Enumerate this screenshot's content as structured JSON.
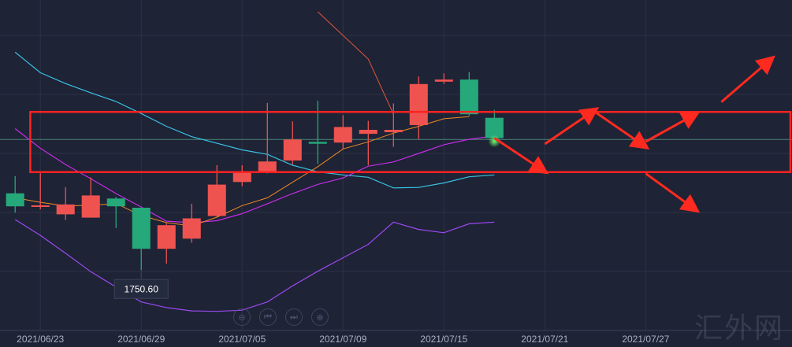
{
  "chart_data": {
    "type": "candlestick",
    "x": [
      "2021/06/22",
      "2021/06/23",
      "2021/06/24",
      "2021/06/25",
      "2021/06/28",
      "2021/06/29",
      "2021/06/30",
      "2021/07/01",
      "2021/07/02",
      "2021/07/05",
      "2021/07/06",
      "2021/07/07",
      "2021/07/08",
      "2021/07/09",
      "2021/07/12",
      "2021/07/13",
      "2021/07/14",
      "2021/07/15",
      "2021/07/16",
      "2021/07/19"
    ],
    "x_tick_labels": [
      "2021/06/23",
      "2021/06/29",
      "2021/07/05",
      "2021/07/09",
      "2021/07/15",
      "2021/07/21",
      "2021/07/27"
    ],
    "candles": [
      {
        "open": 1783.1,
        "high": 1790.4,
        "low": 1774.9,
        "close": 1777.6
      },
      {
        "open": 1777.6,
        "high": 1791.7,
        "low": 1776.3,
        "close": 1778.0
      },
      {
        "open": 1774.2,
        "high": 1785.7,
        "low": 1771.8,
        "close": 1778.4
      },
      {
        "open": 1772.8,
        "high": 1789.9,
        "low": 1772.8,
        "close": 1782.2
      },
      {
        "open": 1780.9,
        "high": 1781.6,
        "low": 1768.4,
        "close": 1777.6
      },
      {
        "open": 1777.0,
        "high": 1777.0,
        "low": 1750.6,
        "close": 1759.6
      },
      {
        "open": 1759.6,
        "high": 1770.6,
        "low": 1753.3,
        "close": 1769.6
      },
      {
        "open": 1763.9,
        "high": 1778.7,
        "low": 1762.2,
        "close": 1772.5
      },
      {
        "open": 1773.5,
        "high": 1795.0,
        "low": 1773.2,
        "close": 1786.8
      },
      {
        "open": 1787.9,
        "high": 1795.0,
        "low": 1786.1,
        "close": 1792.3
      },
      {
        "open": 1792.3,
        "high": 1821.4,
        "low": 1791.5,
        "close": 1796.6
      },
      {
        "open": 1797.0,
        "high": 1813.6,
        "low": 1795.3,
        "close": 1805.9
      },
      {
        "open": 1804.9,
        "high": 1822.3,
        "low": 1795.6,
        "close": 1804.1
      },
      {
        "open": 1804.6,
        "high": 1816.2,
        "low": 1801.6,
        "close": 1811.2
      },
      {
        "open": 1808.3,
        "high": 1813.8,
        "low": 1795.0,
        "close": 1810.0
      },
      {
        "open": 1809.0,
        "high": 1821.2,
        "low": 1802.8,
        "close": 1810.0
      },
      {
        "open": 1812.0,
        "high": 1832.6,
        "low": 1806.1,
        "close": 1829.4
      },
      {
        "open": 1830.4,
        "high": 1833.9,
        "low": 1829.4,
        "close": 1831.3
      },
      {
        "open": 1831.3,
        "high": 1834.5,
        "low": 1815.9,
        "close": 1816.6
      },
      {
        "open": 1815.1,
        "high": 1818.5,
        "low": 1805.9,
        "close": 1806.5
      }
    ],
    "ma_short": [
      1781.2,
      1779.3,
      1777.8,
      1778.0,
      1778.8,
      1773.7,
      1770.7,
      1769.3,
      1773.0,
      1777.9,
      1781.2,
      1787.8,
      1794.4,
      1801.9,
      1804.9,
      1808.6,
      1811.5,
      1814.7,
      1815.6,
      null
    ],
    "ma_long": [
      1810.5,
      1802.2,
      1795.3,
      1789.3,
      1783.0,
      1777.3,
      1771.3,
      1770.7,
      1771.5,
      1774.5,
      1778.7,
      1783.0,
      1786.9,
      1789.6,
      1794.6,
      1796.4,
      1800.0,
      1803.7,
      1806.0,
      1807.4
    ],
    "boll_upper": [
      1842.9,
      1834.2,
      1829.6,
      1825.7,
      1822.0,
      1816.9,
      1811.5,
      1807.1,
      1804.3,
      1801.5,
      1799.6,
      1795.0,
      1792.2,
      1790.9,
      1789.9,
      1785.4,
      1785.6,
      1787.5,
      1790.1,
      1790.9
    ],
    "boll_lower": [
      1772.0,
      1765.3,
      1757.7,
      1749.9,
      1743.4,
      1737.1,
      1734.7,
      1733.3,
      1733.1,
      1733.6,
      1737.1,
      1743.9,
      1750.1,
      1755.8,
      1761.5,
      1770.9,
      1767.8,
      1766.4,
      1770.2,
      1770.9
    ],
    "annotation_line_from_13": [
      1816.6,
      1840.0,
      1860.0
    ],
    "low_annotation": "1750.60",
    "levels": {
      "box_top": 1817.6,
      "box_bottom": 1792.1,
      "h_guide": 1805.9
    },
    "forecast_arrows": [
      {
        "from": [
          19,
          1806.5
        ],
        "to": [
          21,
          1792.3
        ]
      },
      {
        "from": [
          21,
          1804.0
        ],
        "to": [
          23,
          1818.5
        ]
      },
      {
        "from": [
          23,
          1817.5
        ],
        "to": [
          25,
          1802.8
        ]
      },
      {
        "from": [
          25,
          1805.0
        ],
        "to": [
          27,
          1816.8
        ]
      },
      {
        "from": [
          25,
          1791.5
        ],
        "to": [
          27,
          1776.0
        ]
      },
      {
        "from": [
          28,
          1821.8
        ],
        "to": [
          30,
          1840.2
        ]
      }
    ],
    "ylim": [
      1725,
      1865
    ],
    "xlim": [
      -0.6,
      30.8
    ],
    "colors": {
      "background": "#1e2336",
      "up": "#ef5350",
      "down": "#26a97a",
      "ma_short": "#f08a24",
      "ma_long": "#c62ce8",
      "boll_upper": "#39c3e3",
      "boll_lower": "#9b49f0",
      "annotation": "#e0583b",
      "box": "#ff2222",
      "arrow": "#ff2a1f",
      "guide": "#5aa58a",
      "grid": "#2c3146"
    },
    "xlabel": "",
    "ylabel": ""
  },
  "controls": {
    "zoom_out_icon": "⊖",
    "back_icon": "⏮",
    "forward_icon": "⏭",
    "zoom_in_icon": "⊕"
  },
  "watermark": "汇外网"
}
